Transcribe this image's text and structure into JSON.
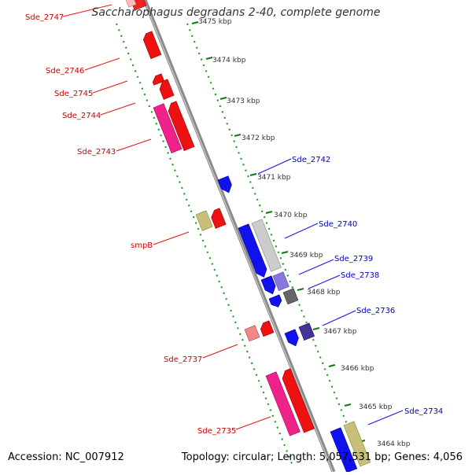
{
  "title": "Saccharophagus degradans 2-40, complete genome",
  "footer": {
    "accession": "Accession: NC_007912",
    "summary": "Topology: circular; Length: 5,057,531 bp; Genes: 4,056"
  },
  "colors": {
    "red": "#ee1111",
    "pink": "#ee2288",
    "blue": "#1111ee",
    "label_red": "#cc0000",
    "label_blue": "#0000cc",
    "ticks": "#119911"
  },
  "kbp_ticks": [
    {
      "id": "3475",
      "label": "3475 kbp"
    },
    {
      "id": "3474",
      "label": "3474 kbp"
    },
    {
      "id": "3473",
      "label": "3473 kbp"
    },
    {
      "id": "3472",
      "label": "3472 kbp"
    },
    {
      "id": "3471",
      "label": "3471 kbp"
    },
    {
      "id": "3470",
      "label": "3470 kbp"
    },
    {
      "id": "3469",
      "label": "3469 kbp"
    },
    {
      "id": "3468",
      "label": "3468 kbp"
    },
    {
      "id": "3467",
      "label": "3467 kbp"
    },
    {
      "id": "3466",
      "label": "3466 kbp"
    },
    {
      "id": "3465",
      "label": "3465 kbp"
    },
    {
      "id": "3464",
      "label": "3464 kbp"
    }
  ],
  "gene_labels": {
    "sde_2747": "Sde_2747",
    "sde_2746": "Sde_2746",
    "sde_2745": "Sde_2745",
    "sde_2744": "Sde_2744",
    "sde_2743": "Sde_2743",
    "smpb": "smpB",
    "sde_2737": "Sde_2737",
    "sde_2735": "Sde_2735",
    "sde_2742": "Sde_2742",
    "sde_2740": "Sde_2740",
    "sde_2739": "Sde_2739",
    "sde_2738": "Sde_2738",
    "sde_2736": "Sde_2736",
    "sde_2734": "Sde_2734"
  }
}
